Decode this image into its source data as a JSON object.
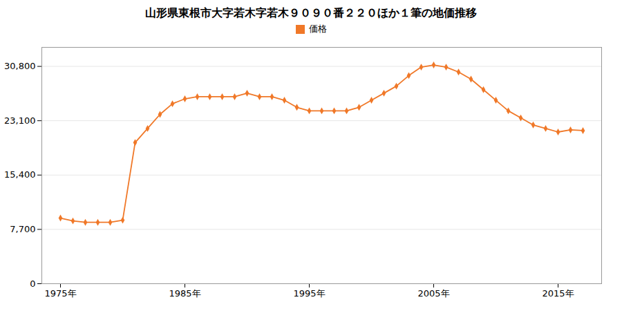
{
  "chart_data": {
    "type": "line",
    "title": "山形県東根市大字若木字若木９０９０番２２０ほか１筆の地価推移",
    "x": [
      1975,
      1976,
      1977,
      1978,
      1979,
      1980,
      1981,
      1982,
      1983,
      1984,
      1985,
      1986,
      1987,
      1988,
      1989,
      1990,
      1991,
      1992,
      1993,
      1994,
      1995,
      1996,
      1997,
      1998,
      1999,
      2000,
      2001,
      2002,
      2003,
      2004,
      2005,
      2006,
      2007,
      2008,
      2009,
      2010,
      2011,
      2012,
      2013,
      2014,
      2015,
      2016,
      2017
    ],
    "series": [
      {
        "name": "価格",
        "color": "#f07828",
        "marker": "diamond",
        "values": [
          9300,
          8900,
          8700,
          8700,
          8700,
          9000,
          20000,
          22000,
          24000,
          25500,
          26200,
          26500,
          26500,
          26500,
          26500,
          27000,
          26500,
          26500,
          26000,
          25000,
          24500,
          24500,
          24500,
          24500,
          25000,
          26000,
          27000,
          28000,
          29500,
          30700,
          31000,
          30700,
          30000,
          29000,
          27500,
          26000,
          24500,
          23500,
          22500,
          22000,
          21500,
          21800,
          21700
        ]
      }
    ],
    "xlim": [
      1973.5,
      2018.5
    ],
    "xticks": [
      {
        "value": 1975,
        "label": "1975年"
      },
      {
        "value": 1985,
        "label": "1985年"
      },
      {
        "value": 1995,
        "label": "1995年"
      },
      {
        "value": 2005,
        "label": "2005年"
      },
      {
        "value": 2015,
        "label": "2015年"
      }
    ],
    "ylim": [
      0,
      33500
    ],
    "yticks": [
      0,
      {
        "value": 7700,
        "label": "7,700"
      },
      {
        "value": 15400,
        "label": "15,400"
      },
      {
        "value": 23100,
        "label": "23,100"
      },
      {
        "value": 30800,
        "label": "30,800"
      }
    ],
    "grid": true,
    "legend": "top"
  }
}
